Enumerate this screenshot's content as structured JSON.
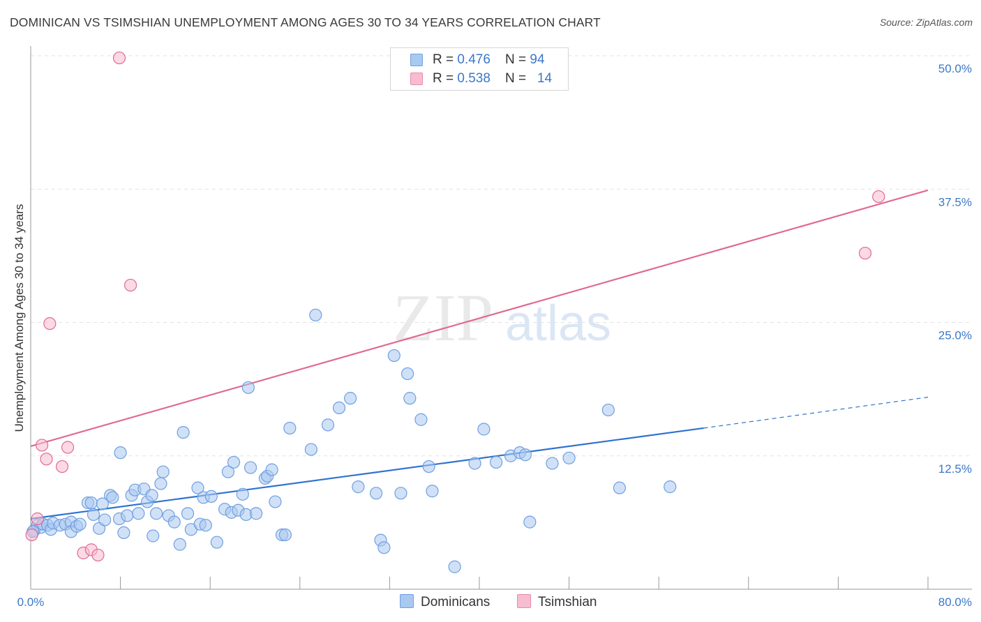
{
  "title": "DOMINICAN VS TSIMSHIAN UNEMPLOYMENT AMONG AGES 30 TO 34 YEARS CORRELATION CHART",
  "source": "Source: ZipAtlas.com",
  "watermark": {
    "zip": "ZIP",
    "atlas": "atlas"
  },
  "legend": {
    "r_label": "R = ",
    "n_label": "N = ",
    "rows": [
      {
        "r": "0.476",
        "n": "94",
        "color": "#a9c9f0",
        "border": "#6f9fe0"
      },
      {
        "r": "0.538",
        "n": "14",
        "color": "#f7bcd0",
        "border": "#e88aaa"
      }
    ]
  },
  "bottom_legend": [
    {
      "label": "Dominicans",
      "color": "#a9c9f0",
      "border": "#6f9fe0"
    },
    {
      "label": "Tsimshian",
      "color": "#f7bcd0",
      "border": "#e88aaa"
    }
  ],
  "chart_data": {
    "type": "scatter",
    "title": "DOMINICAN VS TSIMSHIAN UNEMPLOYMENT AMONG AGES 30 TO 34 YEARS CORRELATION CHART",
    "xlabel": "",
    "ylabel": "Unemployment Among Ages 30 to 34 years",
    "xlim": [
      0,
      80
    ],
    "ylim": [
      0,
      50
    ],
    "x_tick_labels": [
      "0.0%",
      "80.0%"
    ],
    "y_ticks": [
      12.5,
      25.0,
      37.5,
      50.0
    ],
    "y_tick_labels": [
      "12.5%",
      "25.0%",
      "37.5%",
      "50.0%"
    ],
    "grid": "horizontal dashed",
    "legend_position": "top-center",
    "series": [
      {
        "name": "Dominicans",
        "color": "#6f9fe0",
        "fill": "#a9c9f0",
        "trend": {
          "x0": 0,
          "y0": 6.6,
          "x1": 60,
          "y1": 15.1,
          "dashed_to_x": 80,
          "dashed_to_y": 18.0
        },
        "points": [
          [
            0.3,
            5.5
          ],
          [
            0.6,
            6.0
          ],
          [
            0.9,
            5.8
          ],
          [
            1.1,
            6.1
          ],
          [
            1.5,
            6.0
          ],
          [
            1.8,
            5.6
          ],
          [
            2.0,
            6.2
          ],
          [
            2.6,
            6.0
          ],
          [
            3.1,
            6.1
          ],
          [
            3.6,
            6.3
          ],
          [
            3.6,
            5.4
          ],
          [
            4.1,
            5.9
          ],
          [
            4.4,
            6.1
          ],
          [
            5.1,
            8.1
          ],
          [
            5.4,
            8.1
          ],
          [
            5.6,
            7.0
          ],
          [
            6.1,
            5.7
          ],
          [
            6.4,
            8.0
          ],
          [
            6.6,
            6.5
          ],
          [
            7.1,
            8.8
          ],
          [
            7.3,
            8.6
          ],
          [
            7.9,
            6.6
          ],
          [
            8.0,
            12.8
          ],
          [
            8.3,
            5.3
          ],
          [
            8.6,
            6.9
          ],
          [
            9.0,
            8.8
          ],
          [
            9.3,
            9.3
          ],
          [
            9.6,
            7.1
          ],
          [
            10.1,
            9.4
          ],
          [
            10.4,
            8.2
          ],
          [
            10.8,
            8.8
          ],
          [
            10.9,
            5.0
          ],
          [
            11.2,
            7.1
          ],
          [
            11.6,
            9.9
          ],
          [
            11.8,
            11.0
          ],
          [
            12.3,
            6.9
          ],
          [
            12.8,
            6.3
          ],
          [
            13.3,
            4.2
          ],
          [
            13.6,
            14.7
          ],
          [
            14.0,
            7.1
          ],
          [
            14.3,
            5.6
          ],
          [
            14.9,
            9.5
          ],
          [
            15.1,
            6.1
          ],
          [
            15.4,
            8.6
          ],
          [
            15.6,
            6.0
          ],
          [
            16.1,
            8.7
          ],
          [
            16.6,
            4.4
          ],
          [
            17.3,
            7.5
          ],
          [
            17.6,
            11.0
          ],
          [
            17.9,
            7.2
          ],
          [
            18.1,
            11.9
          ],
          [
            18.5,
            7.4
          ],
          [
            18.9,
            8.9
          ],
          [
            19.2,
            7.0
          ],
          [
            19.4,
            18.9
          ],
          [
            19.6,
            11.4
          ],
          [
            20.1,
            7.1
          ],
          [
            20.9,
            10.4
          ],
          [
            21.1,
            10.6
          ],
          [
            21.5,
            11.2
          ],
          [
            21.8,
            8.2
          ],
          [
            22.4,
            5.1
          ],
          [
            22.7,
            5.1
          ],
          [
            23.1,
            15.1
          ],
          [
            25.0,
            13.1
          ],
          [
            25.4,
            25.7
          ],
          [
            26.5,
            15.4
          ],
          [
            27.5,
            17.0
          ],
          [
            28.5,
            17.9
          ],
          [
            29.2,
            9.6
          ],
          [
            30.8,
            9.0
          ],
          [
            31.2,
            4.6
          ],
          [
            31.5,
            3.9
          ],
          [
            32.4,
            21.9
          ],
          [
            33.0,
            9.0
          ],
          [
            33.6,
            20.2
          ],
          [
            33.8,
            17.9
          ],
          [
            34.8,
            15.9
          ],
          [
            35.5,
            11.5
          ],
          [
            35.8,
            9.2
          ],
          [
            37.8,
            2.1
          ],
          [
            39.6,
            11.8
          ],
          [
            40.4,
            15.0
          ],
          [
            41.5,
            11.9
          ],
          [
            42.8,
            12.5
          ],
          [
            43.6,
            12.8
          ],
          [
            44.1,
            12.6
          ],
          [
            44.5,
            6.3
          ],
          [
            46.5,
            11.8
          ],
          [
            48.0,
            12.3
          ],
          [
            51.5,
            16.8
          ],
          [
            52.5,
            9.5
          ],
          [
            57.0,
            9.6
          ],
          [
            0.2,
            5.4
          ]
        ]
      },
      {
        "name": "Tsimshian",
        "color": "#e06a93",
        "fill": "#f7bcd0",
        "trend": {
          "x0": 0,
          "y0": 13.4,
          "x1": 80,
          "y1": 37.4
        },
        "points": [
          [
            0.1,
            5.1
          ],
          [
            0.6,
            6.6
          ],
          [
            1.0,
            13.5
          ],
          [
            1.4,
            12.2
          ],
          [
            1.7,
            24.9
          ],
          [
            2.8,
            11.5
          ],
          [
            3.3,
            13.3
          ],
          [
            4.7,
            3.4
          ],
          [
            5.4,
            3.7
          ],
          [
            6.0,
            3.2
          ],
          [
            7.9,
            49.8
          ],
          [
            8.9,
            28.5
          ],
          [
            74.4,
            31.5
          ],
          [
            75.6,
            36.8
          ]
        ]
      }
    ]
  }
}
